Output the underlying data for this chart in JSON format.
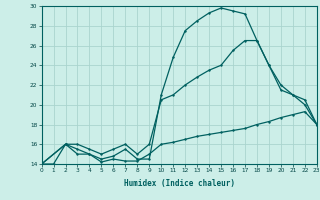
{
  "xlabel": "Humidex (Indice chaleur)",
  "bg_color": "#cceee8",
  "grid_color": "#aad4ce",
  "line_color": "#006060",
  "xlim": [
    0,
    23
  ],
  "ylim": [
    14,
    30
  ],
  "xticks": [
    0,
    1,
    2,
    3,
    4,
    5,
    6,
    7,
    8,
    9,
    10,
    11,
    12,
    13,
    14,
    15,
    16,
    17,
    18,
    19,
    20,
    21,
    22,
    23
  ],
  "yticks": [
    14,
    16,
    18,
    20,
    22,
    24,
    26,
    28,
    30
  ],
  "line1_x": [
    0,
    1,
    2,
    3,
    4,
    5,
    6,
    7,
    8,
    9,
    10,
    11,
    12,
    13,
    14,
    15,
    16,
    17,
    18,
    19,
    20,
    21,
    22,
    23
  ],
  "line1_y": [
    14,
    14,
    16,
    15,
    15,
    14.2,
    14.5,
    14.3,
    14.3,
    15.0,
    16.0,
    16.2,
    16.5,
    16.8,
    17.0,
    17.2,
    17.4,
    17.6,
    18.0,
    18.3,
    18.7,
    19.0,
    19.3,
    18.0
  ],
  "line2_x": [
    0,
    2,
    3,
    4,
    5,
    6,
    7,
    8,
    9,
    10,
    11,
    12,
    13,
    14,
    15,
    16,
    17,
    18,
    19,
    20,
    21,
    22,
    23
  ],
  "line2_y": [
    14,
    16,
    15.5,
    15,
    14.5,
    14.8,
    15.5,
    14.5,
    14.5,
    21,
    24.8,
    27.5,
    28.5,
    29.3,
    29.8,
    29.5,
    29.2,
    26.5,
    24.0,
    21.5,
    21.0,
    20.0,
    18.0
  ],
  "line3_x": [
    0,
    2,
    3,
    4,
    5,
    6,
    7,
    8,
    9,
    10,
    11,
    12,
    13,
    14,
    15,
    16,
    17,
    18,
    19,
    20,
    21,
    22,
    23
  ],
  "line3_y": [
    14,
    16,
    16,
    15.5,
    15,
    15.5,
    16,
    15,
    16,
    20.5,
    21.0,
    22.0,
    22.8,
    23.5,
    24.0,
    25.5,
    26.5,
    26.5,
    24.0,
    22.0,
    21.0,
    20.5,
    18.0
  ]
}
